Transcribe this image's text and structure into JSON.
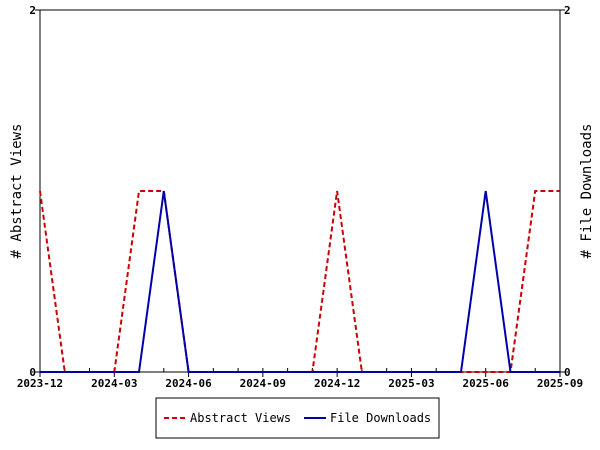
{
  "chart_data": {
    "type": "line",
    "title": "",
    "x_start": "2023-12",
    "x_end": "2025-09",
    "x_ticks": [
      "2023-12",
      "2024-03",
      "2024-06",
      "2024-09",
      "2024-12",
      "2025-03",
      "2025-06",
      "2025-09"
    ],
    "ylabel_left": "# Abstract Views",
    "ylabel_right": "# File Downloads",
    "ylim": [
      0,
      2
    ],
    "y_ticks": [
      0,
      2
    ],
    "grid": false,
    "legend_placement": "bottom-center",
    "series": [
      {
        "name": "Abstract Views",
        "color": "#cc0000",
        "dash": "dashed",
        "axis": "left",
        "x": [
          "2023-12",
          "2024-01",
          "2024-02",
          "2024-03",
          "2024-04",
          "2024-05",
          "2024-06",
          "2024-07",
          "2024-08",
          "2024-09",
          "2024-10",
          "2024-11",
          "2024-12",
          "2025-01",
          "2025-02",
          "2025-03",
          "2025-04",
          "2025-05",
          "2025-06",
          "2025-07",
          "2025-08",
          "2025-09"
        ],
        "values": [
          1,
          0,
          0,
          0,
          1,
          1,
          0,
          0,
          0,
          0,
          0,
          0,
          1,
          0,
          0,
          0,
          0,
          0,
          0,
          0,
          1,
          1
        ]
      },
      {
        "name": "File Downloads",
        "color": "#0000aa",
        "dash": "solid",
        "axis": "right",
        "x": [
          "2023-12",
          "2024-01",
          "2024-02",
          "2024-03",
          "2024-04",
          "2024-05",
          "2024-06",
          "2024-07",
          "2024-08",
          "2024-09",
          "2024-10",
          "2024-11",
          "2024-12",
          "2025-01",
          "2025-02",
          "2025-03",
          "2025-04",
          "2025-05",
          "2025-06",
          "2025-07",
          "2025-08",
          "2025-09"
        ],
        "values": [
          0,
          0,
          0,
          0,
          0,
          1,
          0,
          0,
          0,
          0,
          0,
          0,
          0,
          0,
          0,
          0,
          0,
          0,
          1,
          0,
          0,
          0
        ]
      }
    ]
  }
}
